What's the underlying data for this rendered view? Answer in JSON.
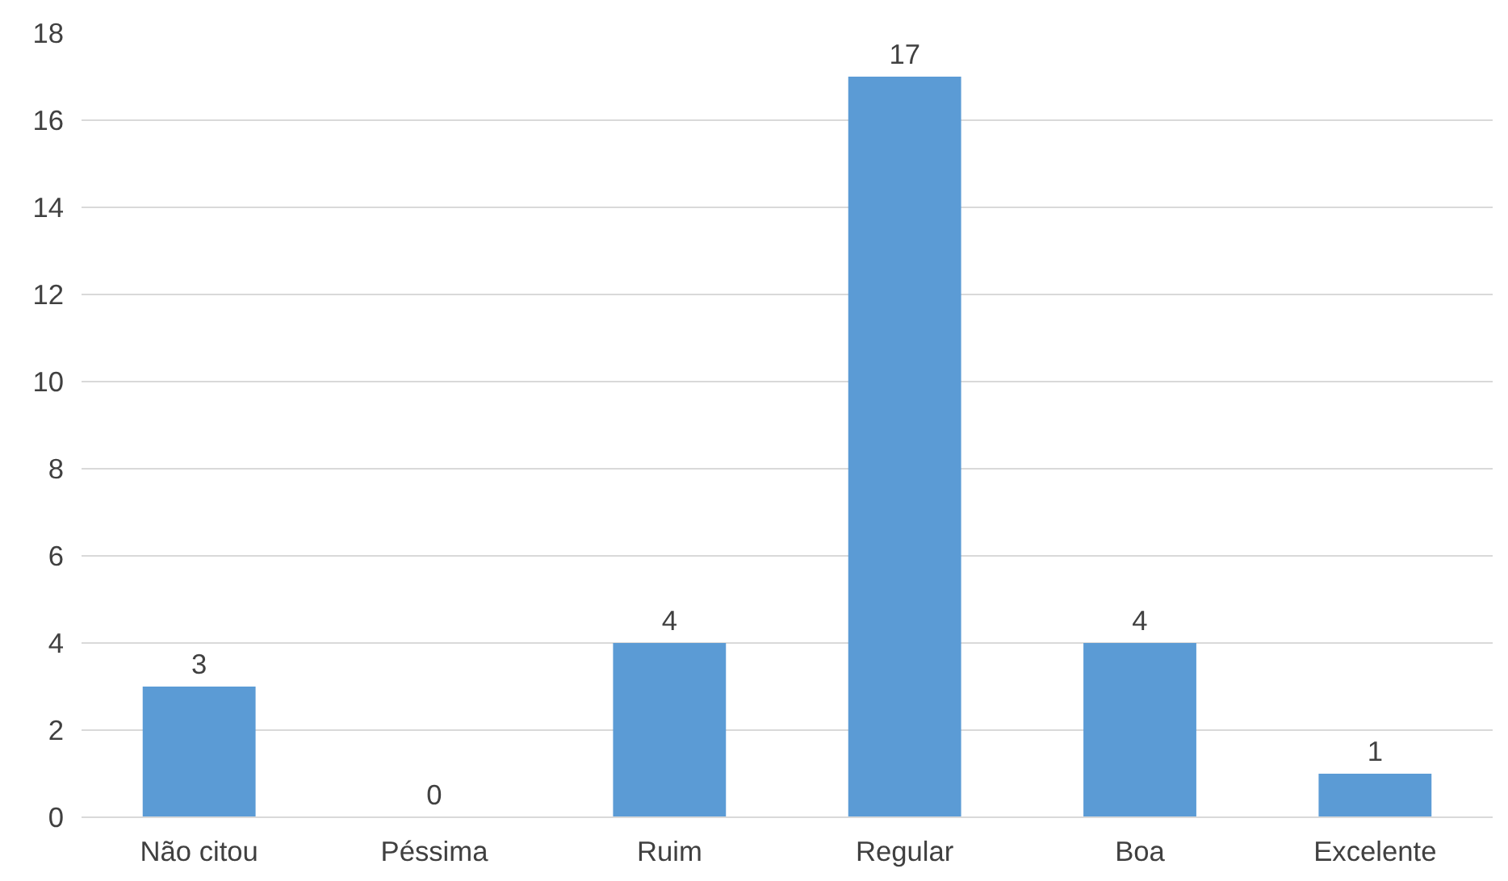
{
  "chart_data": {
    "type": "bar",
    "categories": [
      "Não citou",
      "Péssima",
      "Ruim",
      "Regular",
      "Boa",
      "Excelente"
    ],
    "values": [
      3,
      0,
      4,
      17,
      4,
      1
    ],
    "color": "#5b9bd5",
    "ylim": [
      0,
      18
    ],
    "yticks": [
      0,
      2,
      4,
      6,
      8,
      10,
      12,
      14,
      16,
      18
    ],
    "grid": "y",
    "data_labels": true
  }
}
